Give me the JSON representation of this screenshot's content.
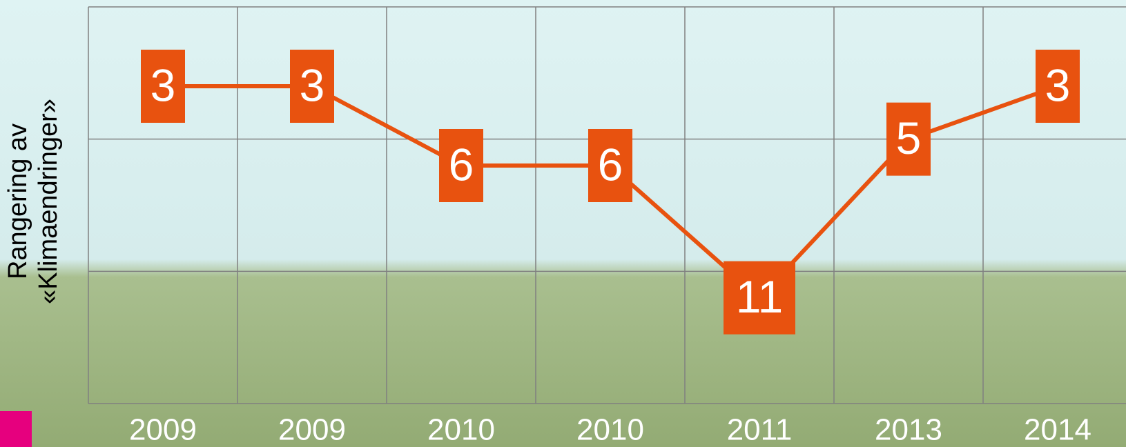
{
  "chart_data": {
    "type": "line",
    "y_label": "Rangering av «Klimaendringer»",
    "categories": [
      "2009",
      "2009",
      "2010",
      "2010",
      "2011",
      "2013",
      "2014"
    ],
    "values": [
      3,
      3,
      6,
      6,
      11,
      5,
      3
    ],
    "color": "#e8520f",
    "ylim": [
      0,
      15
    ],
    "yticks": [
      0,
      5,
      10,
      15
    ],
    "y_inverted": true,
    "grid": true
  }
}
